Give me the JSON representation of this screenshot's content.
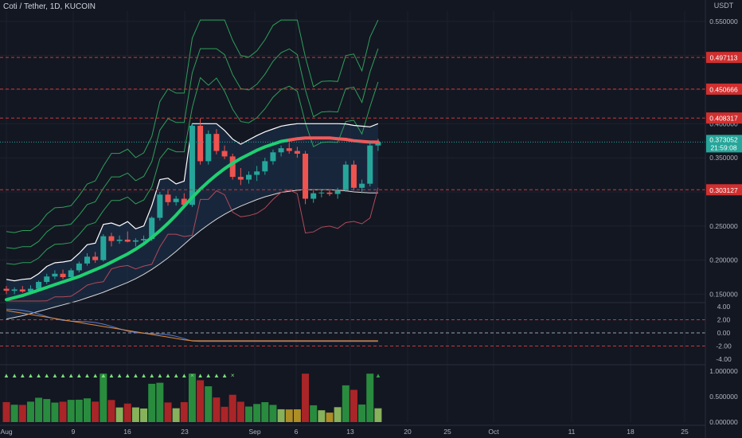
{
  "header": {
    "title": "Coti / Tether, 1D, KUCOIN",
    "currency": "USDT"
  },
  "colors": {
    "bg": "#131722",
    "up": "#26a69a",
    "down": "#ef5350",
    "grid": "#1e222d",
    "hline": "#c73a3a",
    "ma_up": "#1fd071",
    "ma_down": "#f05a5a",
    "band": "#ffffff"
  },
  "chart_data": [
    {
      "type": "line",
      "title": "Coti / Tether, 1D, KUCOIN",
      "x_ticks": [
        "Aug",
        "9",
        "16",
        "23",
        "Sep",
        "6",
        "13",
        "20",
        "25",
        "Oct",
        "11",
        "18",
        "25"
      ],
      "y_ticks": [
        "0.550000",
        "0.400000",
        "0.350000",
        "0.250000",
        "0.200000",
        "0.150000"
      ],
      "ylim": [
        0.14,
        0.565
      ],
      "horizontal_levels": [
        "0.497113",
        "0.450666",
        "0.408317",
        "0.303127"
      ],
      "last_price": "0.373052",
      "countdown": "21:59:08",
      "candles": [
        {
          "o": 0.158,
          "h": 0.162,
          "l": 0.15,
          "c": 0.155
        },
        {
          "o": 0.155,
          "h": 0.16,
          "l": 0.15,
          "c": 0.157
        },
        {
          "o": 0.157,
          "h": 0.162,
          "l": 0.152,
          "c": 0.154
        },
        {
          "o": 0.154,
          "h": 0.163,
          "l": 0.151,
          "c": 0.158
        },
        {
          "o": 0.158,
          "h": 0.17,
          "l": 0.155,
          "c": 0.168
        },
        {
          "o": 0.168,
          "h": 0.18,
          "l": 0.165,
          "c": 0.176
        },
        {
          "o": 0.176,
          "h": 0.185,
          "l": 0.172,
          "c": 0.18
        },
        {
          "o": 0.18,
          "h": 0.186,
          "l": 0.172,
          "c": 0.175
        },
        {
          "o": 0.175,
          "h": 0.188,
          "l": 0.173,
          "c": 0.185
        },
        {
          "o": 0.185,
          "h": 0.198,
          "l": 0.182,
          "c": 0.195
        },
        {
          "o": 0.195,
          "h": 0.21,
          "l": 0.192,
          "c": 0.205
        },
        {
          "o": 0.205,
          "h": 0.212,
          "l": 0.196,
          "c": 0.2
        },
        {
          "o": 0.2,
          "h": 0.238,
          "l": 0.198,
          "c": 0.235
        },
        {
          "o": 0.235,
          "h": 0.24,
          "l": 0.22,
          "c": 0.228
        },
        {
          "o": 0.228,
          "h": 0.236,
          "l": 0.224,
          "c": 0.23
        },
        {
          "o": 0.23,
          "h": 0.242,
          "l": 0.226,
          "c": 0.227
        },
        {
          "o": 0.227,
          "h": 0.232,
          "l": 0.22,
          "c": 0.229
        },
        {
          "o": 0.229,
          "h": 0.236,
          "l": 0.225,
          "c": 0.231
        },
        {
          "o": 0.231,
          "h": 0.264,
          "l": 0.228,
          "c": 0.262
        },
        {
          "o": 0.262,
          "h": 0.3,
          "l": 0.258,
          "c": 0.296
        },
        {
          "o": 0.296,
          "h": 0.302,
          "l": 0.28,
          "c": 0.285
        },
        {
          "o": 0.285,
          "h": 0.294,
          "l": 0.28,
          "c": 0.29
        },
        {
          "o": 0.29,
          "h": 0.298,
          "l": 0.276,
          "c": 0.281
        },
        {
          "o": 0.281,
          "h": 0.4,
          "l": 0.278,
          "c": 0.397
        },
        {
          "o": 0.397,
          "h": 0.408,
          "l": 0.34,
          "c": 0.345
        },
        {
          "o": 0.345,
          "h": 0.39,
          "l": 0.34,
          "c": 0.385
        },
        {
          "o": 0.385,
          "h": 0.392,
          "l": 0.355,
          "c": 0.36
        },
        {
          "o": 0.36,
          "h": 0.368,
          "l": 0.348,
          "c": 0.352
        },
        {
          "o": 0.352,
          "h": 0.356,
          "l": 0.318,
          "c": 0.322
        },
        {
          "o": 0.322,
          "h": 0.335,
          "l": 0.31,
          "c": 0.318
        },
        {
          "o": 0.318,
          "h": 0.33,
          "l": 0.312,
          "c": 0.325
        },
        {
          "o": 0.325,
          "h": 0.338,
          "l": 0.316,
          "c": 0.33
        },
        {
          "o": 0.33,
          "h": 0.35,
          "l": 0.325,
          "c": 0.345
        },
        {
          "o": 0.345,
          "h": 0.362,
          "l": 0.34,
          "c": 0.358
        },
        {
          "o": 0.358,
          "h": 0.368,
          "l": 0.352,
          "c": 0.364
        },
        {
          "o": 0.364,
          "h": 0.372,
          "l": 0.356,
          "c": 0.36
        },
        {
          "o": 0.36,
          "h": 0.366,
          "l": 0.35,
          "c": 0.356
        },
        {
          "o": 0.356,
          "h": 0.36,
          "l": 0.282,
          "c": 0.29
        },
        {
          "o": 0.29,
          "h": 0.302,
          "l": 0.284,
          "c": 0.298
        },
        {
          "o": 0.298,
          "h": 0.304,
          "l": 0.292,
          "c": 0.299
        },
        {
          "o": 0.299,
          "h": 0.303,
          "l": 0.294,
          "c": 0.297
        },
        {
          "o": 0.297,
          "h": 0.306,
          "l": 0.29,
          "c": 0.302
        },
        {
          "o": 0.302,
          "h": 0.345,
          "l": 0.3,
          "c": 0.34
        },
        {
          "o": 0.34,
          "h": 0.346,
          "l": 0.302,
          "c": 0.306
        },
        {
          "o": 0.306,
          "h": 0.318,
          "l": 0.298,
          "c": 0.312
        },
        {
          "o": 0.312,
          "h": 0.372,
          "l": 0.308,
          "c": 0.368
        },
        {
          "o": 0.368,
          "h": 0.378,
          "l": 0.36,
          "c": 0.373
        }
      ],
      "ma_trend": [
        0.142,
        0.145,
        0.148,
        0.152,
        0.156,
        0.16,
        0.164,
        0.168,
        0.172,
        0.176,
        0.181,
        0.186,
        0.191,
        0.197,
        0.203,
        0.209,
        0.216,
        0.224,
        0.233,
        0.243,
        0.254,
        0.266,
        0.279,
        0.292,
        0.304,
        0.315,
        0.325,
        0.334,
        0.342,
        0.349,
        0.355,
        0.361,
        0.366,
        0.37,
        0.374,
        0.376,
        0.378,
        0.379,
        0.379,
        0.379,
        0.379,
        0.378,
        0.377,
        0.375,
        0.374,
        0.373,
        0.373
      ],
      "ma_bands_upper": [
        0.5,
        0.46,
        0.42
      ],
      "oscillator": {
        "y_ticks": [
          "4.00",
          "2.00",
          "0.00",
          "-2.00",
          "-4.00"
        ],
        "ylim": [
          -4.6,
          4.6
        ]
      },
      "volume_panel": {
        "y_ticks": [
          "1.000000",
          "0.500000",
          "0.000000"
        ],
        "ylim": [
          0,
          1.0
        ]
      }
    }
  ]
}
